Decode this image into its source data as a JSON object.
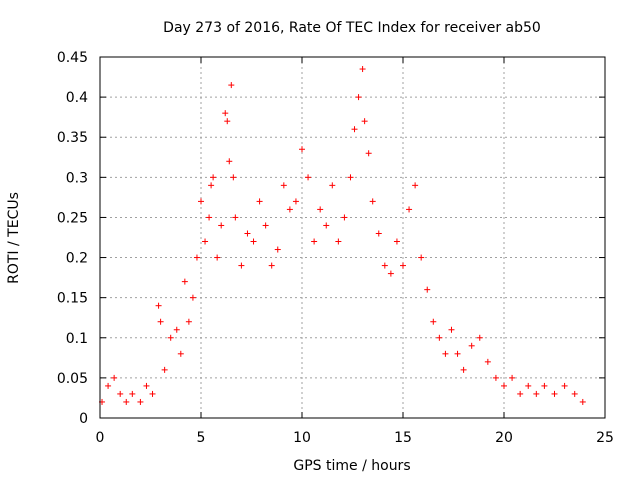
{
  "chart_data": {
    "type": "scatter",
    "title": "Day 273 of 2016, Rate Of TEC Index for receiver ab50",
    "xlabel": "GPS time / hours",
    "ylabel": "ROTI / TECUs",
    "xlim": [
      0,
      25
    ],
    "ylim": [
      0,
      0.45
    ],
    "xticks": [
      0,
      5,
      10,
      15,
      20,
      25
    ],
    "xtick_labels": [
      "0",
      "5",
      "10",
      "15",
      "20",
      "25"
    ],
    "yticks": [
      0,
      0.05,
      0.1,
      0.15,
      0.2,
      0.25,
      0.3,
      0.35,
      0.4,
      0.45
    ],
    "ytick_labels": [
      "0",
      "0.05",
      "0.1",
      "0.15",
      "0.2",
      "0.25",
      "0.3",
      "0.35",
      "0.4",
      "0.45"
    ],
    "grid": true,
    "marker": "plus",
    "color": "#ff0000",
    "series": [
      {
        "name": "ROTI",
        "points": [
          [
            0.1,
            0.02
          ],
          [
            0.4,
            0.04
          ],
          [
            0.7,
            0.05
          ],
          [
            1.0,
            0.03
          ],
          [
            1.3,
            0.02
          ],
          [
            1.6,
            0.03
          ],
          [
            2.0,
            0.02
          ],
          [
            2.3,
            0.04
          ],
          [
            2.6,
            0.03
          ],
          [
            2.9,
            0.14
          ],
          [
            3.0,
            0.12
          ],
          [
            3.2,
            0.06
          ],
          [
            3.5,
            0.1
          ],
          [
            3.8,
            0.11
          ],
          [
            4.0,
            0.08
          ],
          [
            4.2,
            0.17
          ],
          [
            4.4,
            0.12
          ],
          [
            4.6,
            0.15
          ],
          [
            4.8,
            0.2
          ],
          [
            5.0,
            0.27
          ],
          [
            5.2,
            0.22
          ],
          [
            5.4,
            0.25
          ],
          [
            5.5,
            0.29
          ],
          [
            5.6,
            0.3
          ],
          [
            5.8,
            0.2
          ],
          [
            6.0,
            0.24
          ],
          [
            6.2,
            0.38
          ],
          [
            6.3,
            0.37
          ],
          [
            6.4,
            0.32
          ],
          [
            6.5,
            0.415
          ],
          [
            6.6,
            0.3
          ],
          [
            6.7,
            0.25
          ],
          [
            7.0,
            0.19
          ],
          [
            7.3,
            0.23
          ],
          [
            7.6,
            0.22
          ],
          [
            7.9,
            0.27
          ],
          [
            8.2,
            0.24
          ],
          [
            8.5,
            0.19
          ],
          [
            8.8,
            0.21
          ],
          [
            9.1,
            0.29
          ],
          [
            9.4,
            0.26
          ],
          [
            9.7,
            0.27
          ],
          [
            10.0,
            0.335
          ],
          [
            10.3,
            0.3
          ],
          [
            10.6,
            0.22
          ],
          [
            10.9,
            0.26
          ],
          [
            11.2,
            0.24
          ],
          [
            11.5,
            0.29
          ],
          [
            11.8,
            0.22
          ],
          [
            12.1,
            0.25
          ],
          [
            12.4,
            0.3
          ],
          [
            12.6,
            0.36
          ],
          [
            12.8,
            0.4
          ],
          [
            13.0,
            0.435
          ],
          [
            13.1,
            0.37
          ],
          [
            13.3,
            0.33
          ],
          [
            13.5,
            0.27
          ],
          [
            13.8,
            0.23
          ],
          [
            14.1,
            0.19
          ],
          [
            14.4,
            0.18
          ],
          [
            14.7,
            0.22
          ],
          [
            15.0,
            0.19
          ],
          [
            15.3,
            0.26
          ],
          [
            15.6,
            0.29
          ],
          [
            15.9,
            0.2
          ],
          [
            16.2,
            0.16
          ],
          [
            16.5,
            0.12
          ],
          [
            16.8,
            0.1
          ],
          [
            17.1,
            0.08
          ],
          [
            17.4,
            0.11
          ],
          [
            17.7,
            0.08
          ],
          [
            18.0,
            0.06
          ],
          [
            18.4,
            0.09
          ],
          [
            18.8,
            0.1
          ],
          [
            19.2,
            0.07
          ],
          [
            19.6,
            0.05
          ],
          [
            20.0,
            0.04
          ],
          [
            20.4,
            0.05
          ],
          [
            20.8,
            0.03
          ],
          [
            21.2,
            0.04
          ],
          [
            21.6,
            0.03
          ],
          [
            22.0,
            0.04
          ],
          [
            22.5,
            0.03
          ],
          [
            23.0,
            0.04
          ],
          [
            23.5,
            0.03
          ],
          [
            23.9,
            0.02
          ]
        ]
      }
    ]
  }
}
